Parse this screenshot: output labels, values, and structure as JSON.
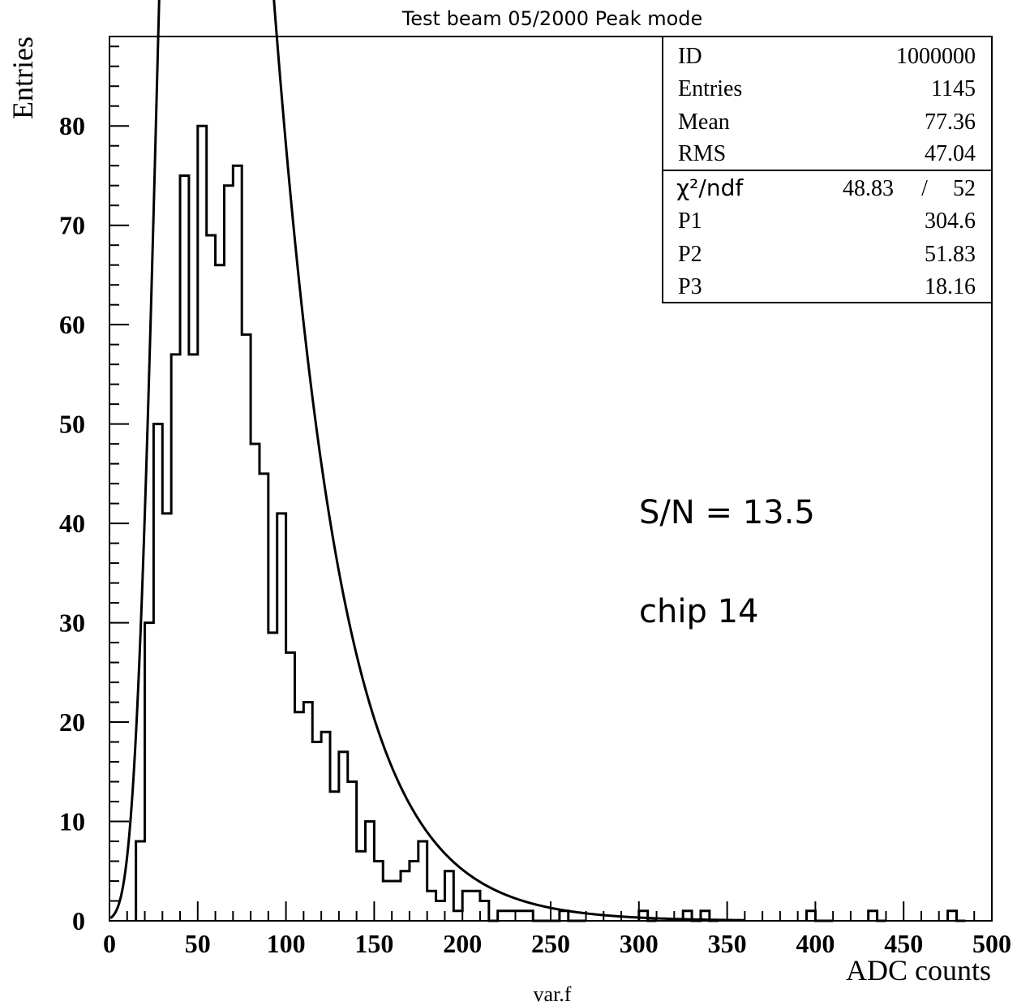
{
  "chart_data": {
    "type": "bar",
    "title": "Test beam 05/2000  Peak mode",
    "xlabel": "ADC counts",
    "ylabel": "Entries",
    "footer": "var.f",
    "xlim": [
      0,
      500
    ],
    "ylim": [
      0,
      89
    ],
    "bin_width": 5,
    "x_ticks": [
      0,
      50,
      100,
      150,
      200,
      250,
      300,
      350,
      400,
      450,
      500
    ],
    "y_ticks": [
      0,
      10,
      20,
      30,
      40,
      50,
      60,
      70,
      80
    ],
    "bins": {
      "x_low": [
        15,
        20,
        25,
        30,
        35,
        40,
        45,
        50,
        55,
        60,
        65,
        70,
        75,
        80,
        85,
        90,
        95,
        100,
        105,
        110,
        115,
        120,
        125,
        130,
        135,
        140,
        145,
        150,
        155,
        160,
        165,
        170,
        175,
        180,
        185,
        190,
        195,
        200,
        205,
        210,
        215,
        220,
        225,
        230,
        235,
        240,
        245,
        250,
        255,
        260,
        265,
        300,
        305,
        325,
        330,
        335,
        340,
        395,
        400,
        405,
        430,
        435,
        475,
        480
      ],
      "counts": [
        8,
        30,
        50,
        41,
        57,
        75,
        57,
        80,
        69,
        66,
        74,
        76,
        59,
        48,
        45,
        29,
        41,
        27,
        21,
        22,
        18,
        19,
        13,
        17,
        14,
        7,
        10,
        6,
        4,
        4,
        5,
        6,
        8,
        3,
        2,
        5,
        1,
        3,
        3,
        2,
        0,
        1,
        1,
        1,
        1,
        0,
        0,
        0,
        1,
        0,
        0,
        1,
        0,
        1,
        0,
        1,
        0,
        1,
        0,
        0,
        1,
        0,
        1,
        0
      ]
    },
    "fit_function": {
      "name": "Landau",
      "P1": 304.6,
      "P2": 51.83,
      "P3": 18.16
    },
    "stats_box": {
      "rows": [
        {
          "label": "ID",
          "value": "1000000"
        },
        {
          "label": "Entries",
          "value": "1145"
        },
        {
          "label": "Mean",
          "value": "77.36"
        },
        {
          "label": "RMS",
          "value": "47.04"
        }
      ],
      "chi2_label": "χ²/ndf",
      "chi2": "48.83",
      "chi2_sep": "/",
      "ndf": "52",
      "params": [
        {
          "label": "P1",
          "value": "304.6"
        },
        {
          "label": "P2",
          "value": "51.83"
        },
        {
          "label": "P3",
          "value": "18.16"
        }
      ]
    },
    "annotations": [
      "S/N = 13.5",
      "chip 14"
    ]
  }
}
